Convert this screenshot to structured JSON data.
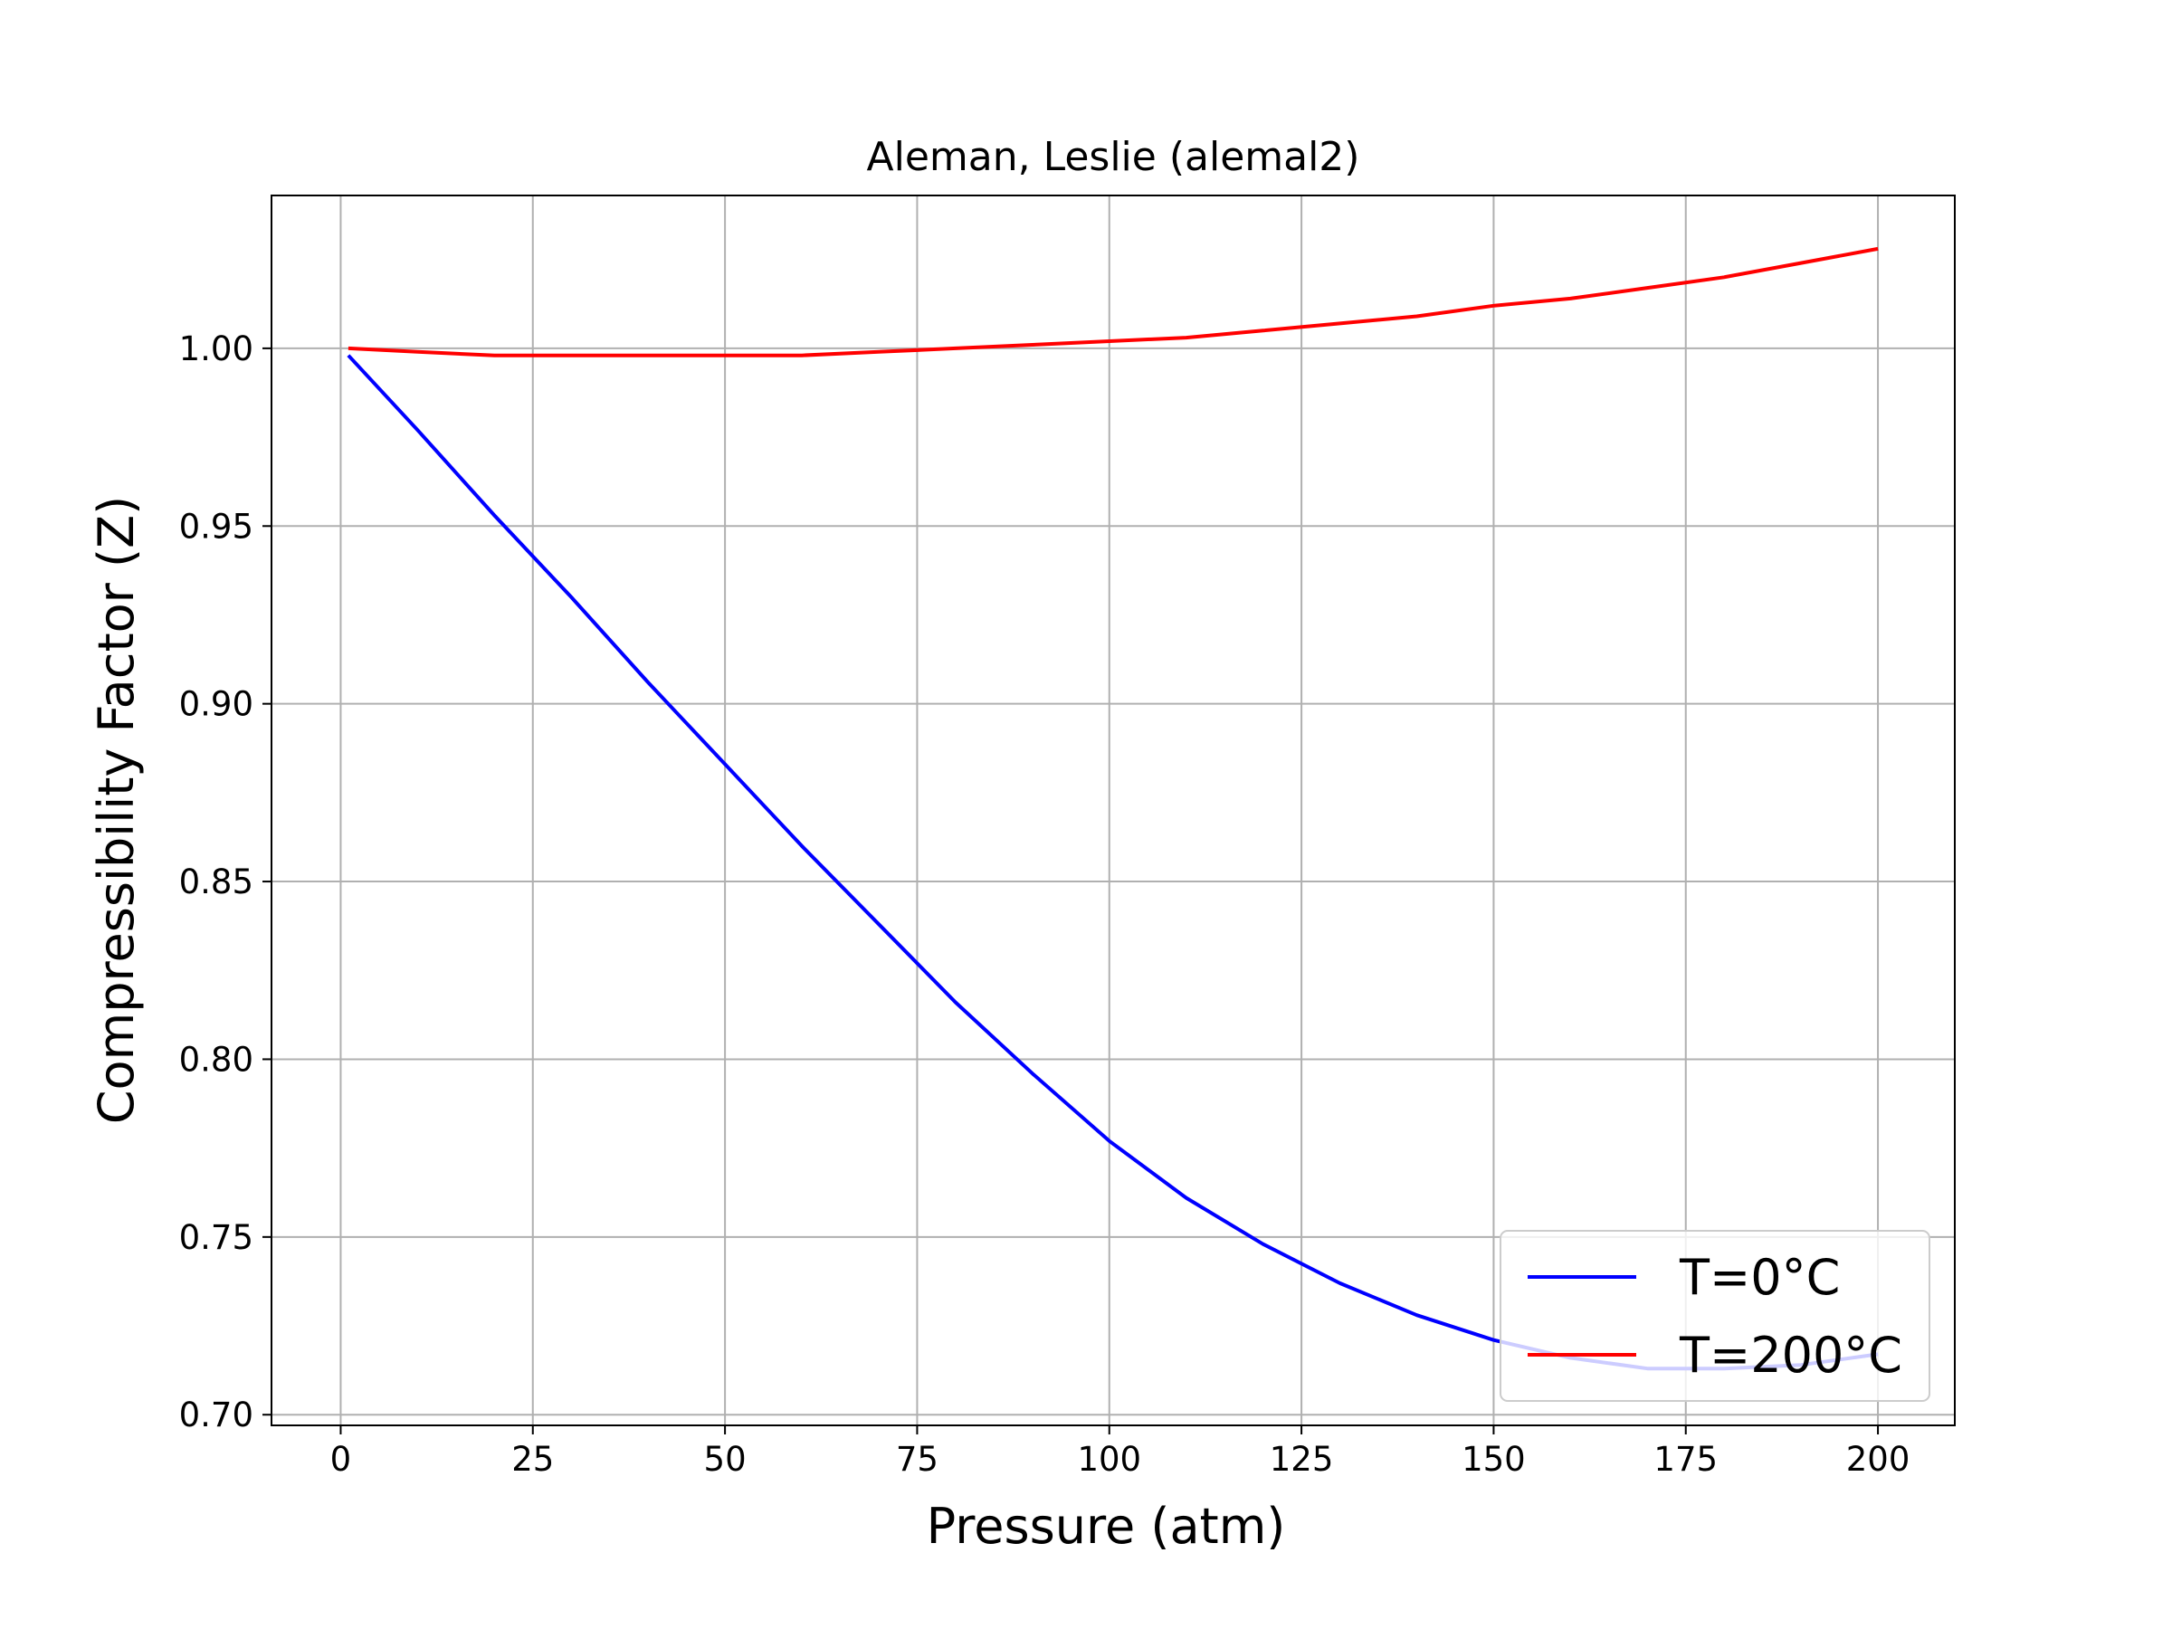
{
  "chart_data": {
    "type": "line",
    "title": "Aleman, Leslie (alemal2)",
    "xlabel": "Pressure (atm)",
    "ylabel": "Compressibility Factor (Z)",
    "xlim": [
      -9,
      210
    ],
    "ylim": [
      0.697,
      1.043
    ],
    "xticks": [
      0,
      25,
      50,
      75,
      100,
      125,
      150,
      175,
      200
    ],
    "xtick_labels": [
      "0",
      "25",
      "50",
      "75",
      "100",
      "125",
      "150",
      "175",
      "200"
    ],
    "yticks": [
      0.7,
      0.75,
      0.8,
      0.85,
      0.9,
      0.95,
      1.0
    ],
    "ytick_labels": [
      "0.70",
      "0.75",
      "0.80",
      "0.85",
      "0.90",
      "0.95",
      "1.00"
    ],
    "grid": true,
    "legend_position": "lower-right",
    "series": [
      {
        "name": "T=0°C",
        "color": "#0000ff",
        "x": [
          1,
          10,
          20,
          30,
          40,
          50,
          60,
          70,
          80,
          90,
          100,
          110,
          120,
          130,
          140,
          150,
          160,
          170,
          180,
          190,
          200
        ],
        "y": [
          0.998,
          0.977,
          0.953,
          0.93,
          0.906,
          0.883,
          0.86,
          0.838,
          0.816,
          0.796,
          0.777,
          0.761,
          0.748,
          0.737,
          0.728,
          0.721,
          0.716,
          0.713,
          0.713,
          0.714,
          0.717
        ]
      },
      {
        "name": "T=200°C",
        "color": "#ff0000",
        "x": [
          1,
          10,
          20,
          30,
          40,
          50,
          60,
          70,
          80,
          90,
          100,
          110,
          120,
          130,
          140,
          150,
          160,
          170,
          180,
          190,
          200
        ],
        "y": [
          1.0,
          0.999,
          0.998,
          0.998,
          0.998,
          0.998,
          0.998,
          0.999,
          1.0,
          1.001,
          1.002,
          1.003,
          1.005,
          1.007,
          1.009,
          1.012,
          1.014,
          1.017,
          1.02,
          1.024,
          1.028
        ]
      }
    ]
  }
}
